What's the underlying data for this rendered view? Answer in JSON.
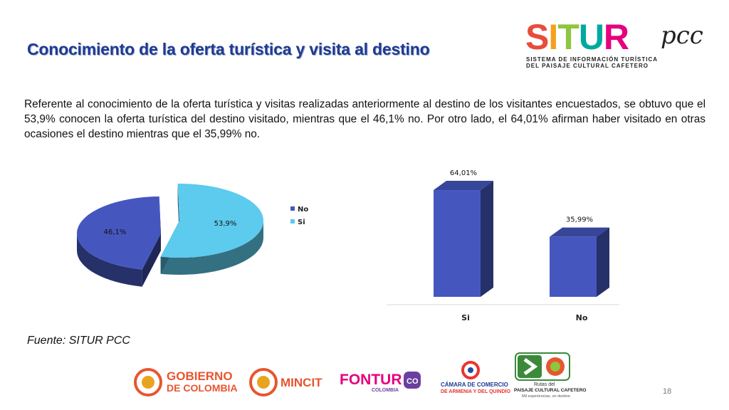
{
  "title": "Conocimiento de la oferta turística y visita al destino",
  "body_text": "Referente al conocimiento de la oferta turística y visitas realizadas anteriormente al destino de los visitantes encuestados, se obtuvo que el 53,9% conocen la oferta turística del destino visitado, mientras que el 46,1% no. Por otro lado, el 64,01% afirman haber visitado en otras ocasiones el destino mientras que el 35,99% no.",
  "source": "Fuente: SITUR PCC",
  "page_number": "18",
  "logo_situr": {
    "word": "SITUR",
    "suffix": "pcc",
    "subtitle_line1": "SISTEMA DE INFORMACIÓN TURÍSTICA",
    "subtitle_line2": "DEL PAISAJE CULTURAL CAFETERO"
  },
  "footer_logos": {
    "gobierno_line1": "GOBIERNO",
    "gobierno_line2": "DE COLOMBIA",
    "mincit": "MINCIT",
    "fontur": "FONTUR",
    "fontur_sub": "COLOMBIA",
    "camara_line1": "CÁMARA DE COMERCIO",
    "camara_line2": "DE ARMENIA Y DEL QUINDÍO",
    "rutas_line1": "Rutas del",
    "rutas_line2": "PAISAJE CULTURAL CAFETERO",
    "rutas_line3": "Mil experiencias, un destino"
  },
  "chart_data": [
    {
      "type": "pie",
      "categories": [
        "No",
        "Si"
      ],
      "values": [
        46.1,
        53.9
      ],
      "data_labels": [
        "46,1%",
        "53,9%"
      ],
      "colors": [
        "#4557bf",
        "#5ccbed"
      ],
      "legend": [
        "No",
        "Si"
      ],
      "legend_placement": "right"
    },
    {
      "type": "bar",
      "categories": [
        "Si",
        "No"
      ],
      "values": [
        64.01,
        35.99
      ],
      "data_labels": [
        "64,01%",
        "35,99%"
      ],
      "ylim": [
        0,
        70
      ],
      "color": "#4557bf",
      "grid": false
    }
  ]
}
